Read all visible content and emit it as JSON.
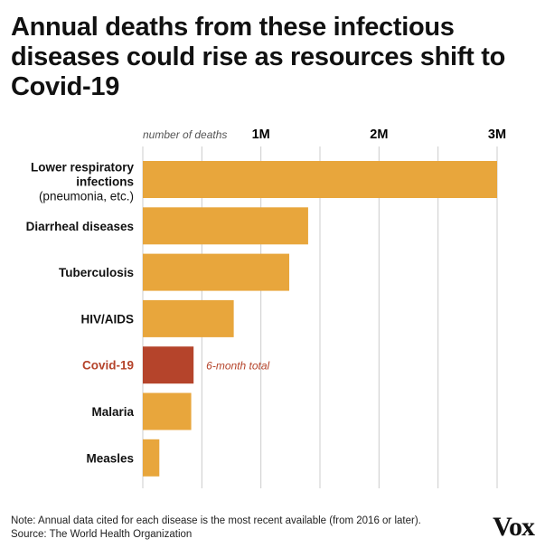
{
  "title": "Annual deaths from these infectious diseases could rise as resources shift to Covid-19",
  "note": {
    "line1": "Note: Annual data cited for each disease is the most recent available (from 2016 or later).",
    "line2": "Source: The World Health Organization"
  },
  "logo": "Vox",
  "colors": {
    "bar": "#e8a63c",
    "highlight": "#b5442b",
    "grid": "#cccccc",
    "text": "#111111"
  },
  "chart_data": {
    "type": "bar",
    "orientation": "horizontal",
    "axis_unit_label": "number of deaths",
    "xlim": [
      0,
      3000000
    ],
    "grid": true,
    "ticks": [
      {
        "value": 1000000,
        "label": "1M"
      },
      {
        "value": 2000000,
        "label": "2M"
      },
      {
        "value": 3000000,
        "label": "3M"
      }
    ],
    "categories": [
      {
        "label": "Lower respiratory infections",
        "sublabel": "(pneumonia, etc.)",
        "value": 3000000,
        "highlight": false
      },
      {
        "label": "Diarrheal diseases",
        "value": 1400000,
        "highlight": false
      },
      {
        "label": "Tuberculosis",
        "value": 1240000,
        "highlight": false
      },
      {
        "label": "HIV/AIDS",
        "value": 770000,
        "highlight": false
      },
      {
        "label": "Covid-19",
        "value": 430000,
        "highlight": true,
        "annotation": "6-month total"
      },
      {
        "label": "Malaria",
        "value": 410000,
        "highlight": false
      },
      {
        "label": "Measles",
        "value": 140000,
        "highlight": false
      }
    ]
  }
}
